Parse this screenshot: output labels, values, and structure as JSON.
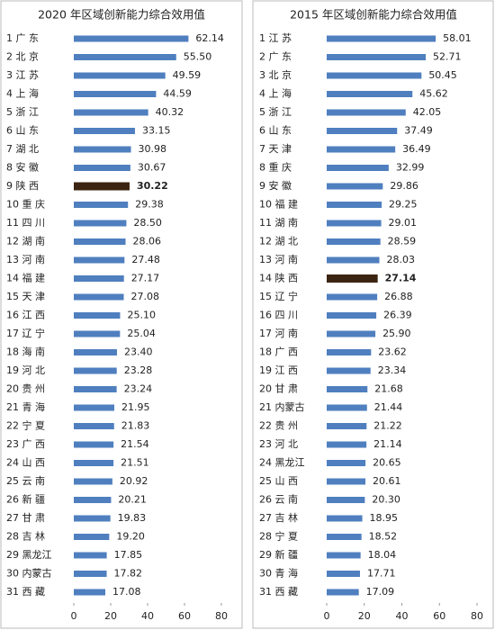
{
  "chart_data": [
    {
      "type": "barh",
      "title": "2020 年区域创新能力综合效用值",
      "categories": [
        "1 广 东",
        "2 北 京",
        "3 江 苏",
        "4 上 海",
        "5 浙 江",
        "6 山 东",
        "7 湖 北",
        "8 安 徽",
        "9 陕 西",
        "10 重 庆",
        "11 四 川",
        "12 湖 南",
        "13 河 南",
        "14 福 建",
        "15 天 津",
        "16 江 西",
        "17 辽 宁",
        "18 海 南",
        "19 河 北",
        "20 贵 州",
        "21 青 海",
        "22 宁 夏",
        "23 广 西",
        "24 山 西",
        "25 云 南",
        "26 新 疆",
        "27 甘 肃",
        "28 吉 林",
        "29 黑龙江",
        "30 内蒙古",
        "31 西 藏"
      ],
      "values": [
        62.14,
        55.5,
        49.59,
        44.59,
        40.32,
        33.15,
        30.98,
        30.67,
        30.22,
        29.38,
        28.5,
        28.06,
        27.48,
        27.17,
        27.08,
        25.1,
        25.04,
        23.4,
        23.28,
        23.24,
        21.95,
        21.83,
        21.54,
        21.51,
        20.92,
        20.21,
        19.83,
        19.2,
        17.85,
        17.82,
        17.08
      ],
      "value_labels": [
        "62.14",
        "55.50",
        "49.59",
        "44.59",
        "40.32",
        "33.15",
        "30.98",
        "30.67",
        "30.22",
        "29.38",
        "28.50",
        "28.06",
        "27.48",
        "27.17",
        "27.08",
        "25.10",
        "25.04",
        "23.40",
        "23.28",
        "23.24",
        "21.95",
        "21.83",
        "21.54",
        "21.51",
        "20.92",
        "20.21",
        "19.83",
        "19.20",
        "17.85",
        "17.82",
        "17.08"
      ],
      "colors": [
        "#4f7fbf",
        "#4f7fbf",
        "#4f7fbf",
        "#4f7fbf",
        "#4f7fbf",
        "#4f7fbf",
        "#4f7fbf",
        "#4f7fbf",
        "#3b2412",
        "#4f7fbf",
        "#4f7fbf",
        "#4f7fbf",
        "#4f7fbf",
        "#4f7fbf",
        "#4f7fbf",
        "#4f7fbf",
        "#4f7fbf",
        "#4f7fbf",
        "#4f7fbf",
        "#4f7fbf",
        "#4f7fbf",
        "#4f7fbf",
        "#4f7fbf",
        "#4f7fbf",
        "#4f7fbf",
        "#4f7fbf",
        "#4f7fbf",
        "#4f7fbf",
        "#4f7fbf",
        "#4f7fbf",
        "#4f7fbf"
      ],
      "xlim": [
        0,
        80
      ],
      "xticks": [
        0,
        20,
        40,
        60,
        80
      ]
    },
    {
      "type": "barh",
      "title": "2015 年区域创新能力综合效用值",
      "categories": [
        "1 江 苏",
        "2 广 东",
        "3 北 京",
        "4 上 海",
        "5 浙 江",
        "6 山 东",
        "7 天 津",
        "8 重 庆",
        "9 安 徽",
        "10 福 建",
        "11 湖 南",
        "12 湖 北",
        "13 河 南",
        "14 陕 西",
        "15 辽 宁",
        "16 四 川",
        "17 河 南",
        "18 广 西",
        "19 江 西",
        "20 甘 肃",
        "21 内蒙古",
        "22 贵 州",
        "23 河 北",
        "24 黑龙江",
        "25 山 西",
        "26 云 南",
        "27 吉 林",
        "28 宁 夏",
        "29 新 疆",
        "30 青 海",
        "31 西 藏"
      ],
      "values": [
        58.01,
        52.71,
        50.45,
        45.62,
        42.05,
        37.49,
        36.49,
        32.99,
        29.86,
        29.25,
        29.01,
        28.59,
        28.03,
        27.14,
        26.88,
        26.39,
        25.9,
        23.62,
        23.34,
        21.68,
        21.44,
        21.22,
        21.14,
        20.65,
        20.61,
        20.3,
        18.95,
        18.52,
        18.04,
        17.71,
        17.09
      ],
      "value_labels": [
        "58.01",
        "52.71",
        "50.45",
        "45.62",
        "42.05",
        "37.49",
        "36.49",
        "32.99",
        "29.86",
        "29.25",
        "29.01",
        "28.59",
        "28.03",
        "27.14",
        "26.88",
        "26.39",
        "25.90",
        "23.62",
        "23.34",
        "21.68",
        "21.44",
        "21.22",
        "21.14",
        "20.65",
        "20.61",
        "20.30",
        "18.95",
        "18.52",
        "18.04",
        "17.71",
        "17.09"
      ],
      "colors": [
        "#4f7fbf",
        "#4f7fbf",
        "#4f7fbf",
        "#4f7fbf",
        "#4f7fbf",
        "#4f7fbf",
        "#4f7fbf",
        "#4f7fbf",
        "#4f7fbf",
        "#4f7fbf",
        "#4f7fbf",
        "#4f7fbf",
        "#4f7fbf",
        "#3b2412",
        "#4f7fbf",
        "#4f7fbf",
        "#4f7fbf",
        "#4f7fbf",
        "#4f7fbf",
        "#4f7fbf",
        "#4f7fbf",
        "#4f7fbf",
        "#4f7fbf",
        "#4f7fbf",
        "#4f7fbf",
        "#4f7fbf",
        "#4f7fbf",
        "#4f7fbf",
        "#4f7fbf",
        "#4f7fbf",
        "#4f7fbf"
      ],
      "xlim": [
        0,
        80
      ],
      "xticks": [
        0,
        20,
        40,
        60,
        80
      ]
    }
  ]
}
